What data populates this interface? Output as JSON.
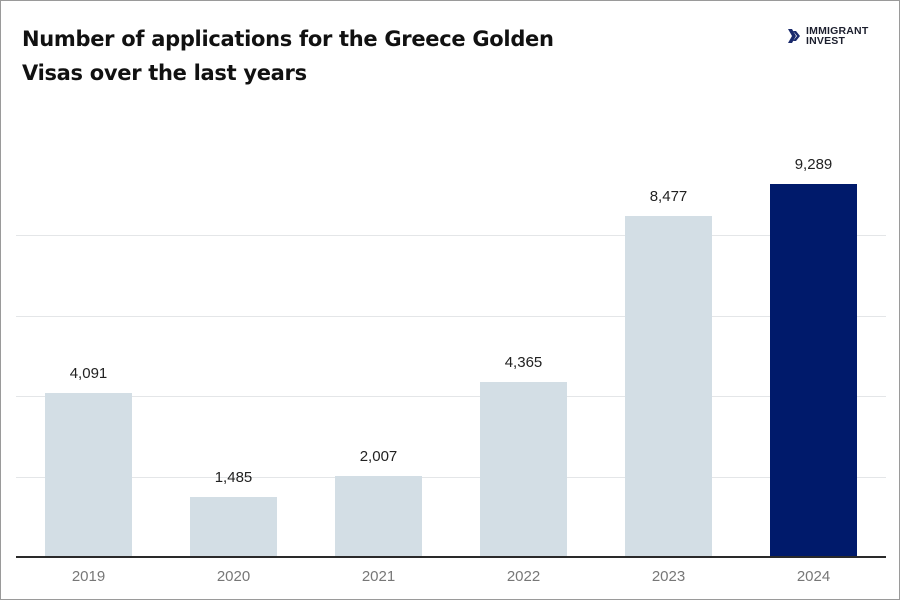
{
  "title": "Number of applications for the Greece Golden Visas over the last years",
  "title_lines": [
    "Number of applications for the Greece Golden",
    "Visas over the last years"
  ],
  "logo": {
    "line1": "IMMIGRANT",
    "line2": "INVEST",
    "icon": "double-chevron-right-icon"
  },
  "colors": {
    "bar_default": "#d3dee5",
    "bar_highlight": "#001a6b",
    "gridline": "#e4e6e8",
    "axis": "#2a2a2a"
  },
  "chart_data": {
    "type": "bar",
    "title": "Number of applications for the Greece Golden Visas over the last years",
    "categories": [
      "2019",
      "2020",
      "2021",
      "2022",
      "2023",
      "2024"
    ],
    "values": [
      4091,
      1485,
      2007,
      4365,
      8477,
      9289
    ],
    "value_labels": [
      "4,091",
      "1,485",
      "2,007",
      "4,365",
      "8,477",
      "9,289"
    ],
    "highlighted": "2024",
    "xlabel": "",
    "ylabel": "",
    "ylim": [
      0,
      10000
    ],
    "gridlines": [
      2000,
      4000,
      6000,
      8000
    ],
    "grid": true,
    "y_tick_labels_visible": false,
    "legend": null
  }
}
